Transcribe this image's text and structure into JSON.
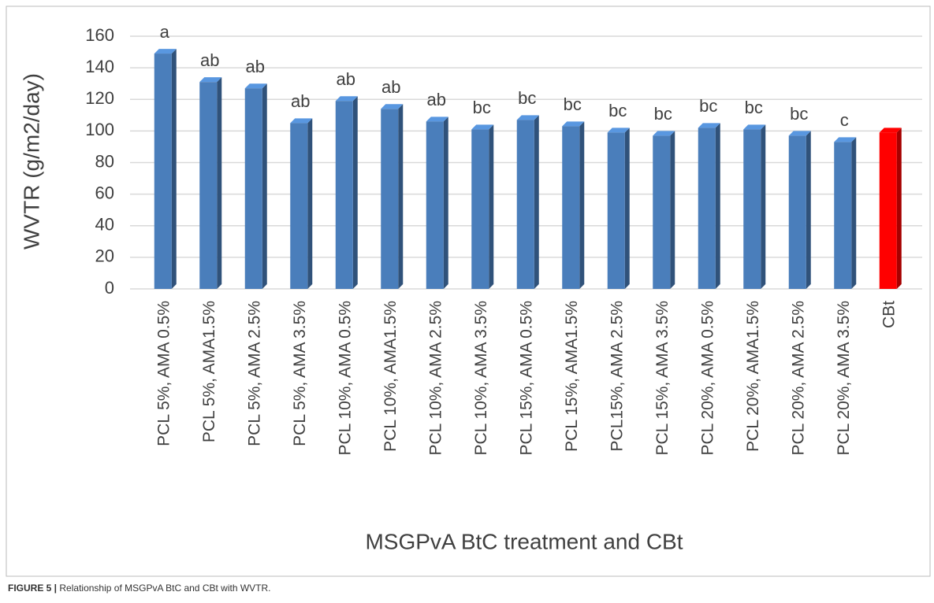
{
  "chart_data": {
    "type": "bar",
    "ylabel": "WVTR (g/m2/day)",
    "xlabel": "MSGPvA BtC treatment and CBt",
    "categories": [
      "PCL 5%, AMA 0.5%",
      "PCL 5%, AMA1.5%",
      "PCL 5%, AMA 2.5%",
      "PCL 5%, AMA 3.5%",
      "PCL 10%, AMA 0.5%",
      "PCL 10%, AMA1.5%",
      "PCL 10%, AMA 2.5%",
      "PCL 10%, AMA 3.5%",
      "PCL 15%, AMA 0.5%",
      "PCL 15%, AMA1.5%",
      "PCL15%, AMA 2.5%",
      "PCL 15%, AMA 3.5%",
      "PCL 20%, AMA 0.5%",
      "PCL 20%, AMA1.5%",
      "PCL 20%, AMA 2.5%",
      "PCL 20%, AMA 3.5%",
      "CBt"
    ],
    "values": [
      149,
      131,
      127,
      105,
      119,
      114,
      106,
      101,
      107,
      103,
      99,
      97,
      102,
      101,
      97,
      93,
      99
    ],
    "annotations": [
      "a",
      "ab",
      "ab",
      "ab",
      "ab",
      "ab",
      "ab",
      "bc",
      "bc",
      "bc",
      "bc",
      "bc",
      "bc",
      "bc",
      "bc",
      "c",
      null
    ],
    "colors": [
      "#4a7ebb",
      "#4a7ebb",
      "#4a7ebb",
      "#4a7ebb",
      "#4a7ebb",
      "#4a7ebb",
      "#4a7ebb",
      "#4a7ebb",
      "#4a7ebb",
      "#4a7ebb",
      "#4a7ebb",
      "#4a7ebb",
      "#4a7ebb",
      "#4a7ebb",
      "#4a7ebb",
      "#4a7ebb",
      "#ff0000"
    ],
    "ylim": [
      0,
      160
    ],
    "yticks": [
      0,
      20,
      40,
      60,
      80,
      100,
      120,
      140,
      160
    ],
    "grid": true
  },
  "caption": {
    "label": "FIGURE 5 |",
    "text": "Relationship of MSGPvA BtC and CBt with WVTR."
  }
}
